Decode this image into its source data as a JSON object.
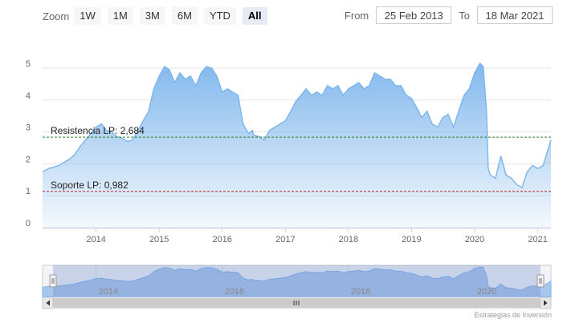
{
  "toolbar": {
    "zoom_label": "Zoom",
    "buttons": [
      "1W",
      "1M",
      "3M",
      "6M",
      "YTD",
      "All"
    ],
    "active": "All"
  },
  "range": {
    "from_label": "From",
    "from_value": "25 Feb 2013",
    "to_label": "To",
    "to_value": "18 Mar 2021"
  },
  "credit": "Estrategias de Inversión",
  "colors": {
    "line": "#7cb5ec",
    "resistance": "#2e7d32",
    "support": "#b71c1c",
    "navigator_mask": "rgba(102,133,194,0.3)"
  },
  "chart_data": {
    "type": "area",
    "title": "",
    "xlabel": "",
    "ylabel": "",
    "ylim": [
      0,
      5
    ],
    "yticks": [
      "0",
      "1",
      "2",
      "3",
      "4",
      "5"
    ],
    "xlim": [
      "2013-02-25",
      "2021-03-18"
    ],
    "xticks": [
      "2014",
      "2015",
      "2016",
      "2017",
      "2018",
      "2019",
      "2020",
      "2021"
    ],
    "navigator_ticks": [
      "2014",
      "2016",
      "2018",
      "2020"
    ],
    "series": [
      {
        "name": "",
        "x": [
          "2013-02-25",
          "2013-04-01",
          "2013-05-01",
          "2013-06-01",
          "2013-07-01",
          "2013-08-01",
          "2013-09-01",
          "2013-10-01",
          "2013-11-01",
          "2013-12-01",
          "2014-01-01",
          "2014-02-01",
          "2014-03-01",
          "2014-04-01",
          "2014-05-01",
          "2014-06-01",
          "2014-07-01",
          "2014-08-01",
          "2014-09-01",
          "2014-10-01",
          "2014-11-01",
          "2014-12-01",
          "2015-01-01",
          "2015-02-01",
          "2015-03-01",
          "2015-04-01",
          "2015-05-01",
          "2015-06-01",
          "2015-07-01",
          "2015-08-01",
          "2015-09-01",
          "2015-10-01",
          "2015-11-01",
          "2015-12-01",
          "2016-01-01",
          "2016-02-01",
          "2016-03-01",
          "2016-04-01",
          "2016-05-01",
          "2016-06-01",
          "2016-06-24",
          "2016-07-01",
          "2016-08-01",
          "2016-09-01",
          "2016-10-01",
          "2016-11-01",
          "2016-12-01",
          "2017-01-01",
          "2017-02-01",
          "2017-03-01",
          "2017-04-01",
          "2017-05-01",
          "2017-06-01",
          "2017-07-01",
          "2017-08-01",
          "2017-09-01",
          "2017-10-01",
          "2017-11-01",
          "2017-12-01",
          "2018-01-01",
          "2018-02-01",
          "2018-03-01",
          "2018-04-01",
          "2018-05-01",
          "2018-06-01",
          "2018-07-01",
          "2018-08-01",
          "2018-09-01",
          "2018-10-01",
          "2018-11-01",
          "2018-12-01",
          "2019-01-01",
          "2019-02-01",
          "2019-03-01",
          "2019-04-01",
          "2019-05-01",
          "2019-06-01",
          "2019-07-01",
          "2019-08-01",
          "2019-09-01",
          "2019-10-01",
          "2019-11-01",
          "2019-12-01",
          "2020-01-01",
          "2020-02-01",
          "2020-02-20",
          "2020-03-10",
          "2020-03-20",
          "2020-04-01",
          "2020-05-01",
          "2020-06-01",
          "2020-07-01",
          "2020-08-01",
          "2020-09-01",
          "2020-10-01",
          "2020-11-01",
          "2020-12-01",
          "2021-01-01",
          "2021-02-01",
          "2021-03-01",
          "2021-03-18"
        ],
        "values": [
          1.6,
          1.7,
          1.75,
          1.8,
          1.9,
          2.0,
          2.15,
          2.4,
          2.6,
          2.8,
          3.0,
          3.1,
          2.9,
          2.85,
          2.7,
          2.65,
          2.55,
          2.6,
          2.9,
          3.2,
          3.5,
          4.2,
          4.6,
          4.9,
          4.8,
          4.4,
          4.7,
          4.5,
          4.6,
          4.3,
          4.7,
          4.9,
          4.85,
          4.6,
          4.1,
          4.2,
          4.1,
          4.0,
          3.1,
          2.8,
          2.9,
          2.75,
          2.7,
          2.6,
          2.9,
          3.0,
          3.1,
          3.2,
          3.5,
          3.8,
          4.0,
          4.2,
          4.0,
          4.1,
          4.0,
          4.3,
          4.2,
          4.3,
          4.0,
          4.2,
          4.3,
          4.4,
          4.2,
          4.3,
          4.7,
          4.6,
          4.5,
          4.5,
          4.3,
          4.3,
          4.0,
          3.9,
          3.6,
          3.3,
          3.5,
          3.1,
          3.0,
          3.3,
          3.4,
          3.0,
          3.5,
          4.0,
          4.2,
          4.7,
          5.0,
          4.9,
          3.5,
          1.7,
          1.5,
          1.4,
          2.1,
          1.5,
          1.4,
          1.2,
          1.1,
          1.6,
          1.8,
          1.7,
          1.8,
          2.3,
          2.6
        ]
      }
    ],
    "plot_lines": [
      {
        "label": "Resistencia LP: 2,684",
        "value": 2.684,
        "color": "#2e7d32"
      },
      {
        "label": "Soporte LP: 0,982",
        "value": 0.982,
        "color": "#b71c1c"
      }
    ],
    "grid": true,
    "legend": "none"
  }
}
